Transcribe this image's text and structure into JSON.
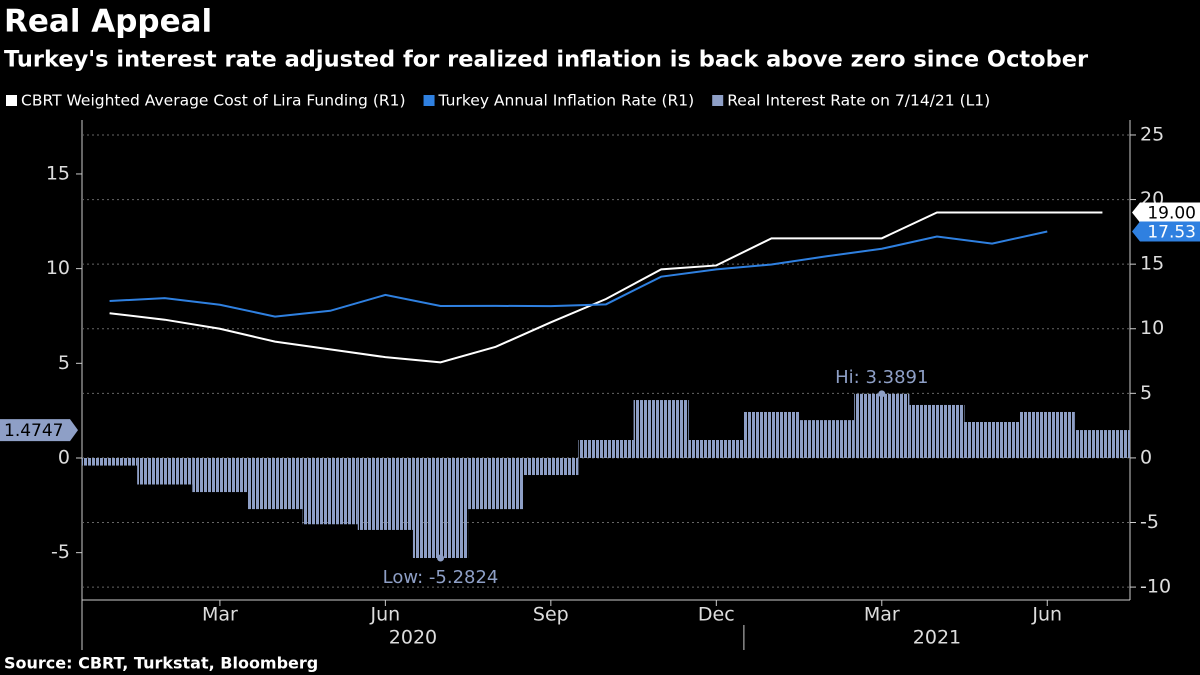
{
  "chart_data": {
    "type": "combo",
    "title": "Real Appeal",
    "subtitle": "Turkey's interest rate adjusted for realized inflation is back above zero since October",
    "source": "Source: CBRT, Turkstat, Bloomberg",
    "x": [
      "2020-01",
      "2020-02",
      "2020-03",
      "2020-04",
      "2020-05",
      "2020-06",
      "2020-07",
      "2020-08",
      "2020-09",
      "2020-10",
      "2020-11",
      "2020-12",
      "2021-01",
      "2021-02",
      "2021-03",
      "2021-04",
      "2021-05",
      "2021-06",
      "2021-07"
    ],
    "xlim": [
      "2020-01",
      "2021-07"
    ],
    "xticks": [
      {
        "value": "2020-03",
        "label": "Mar"
      },
      {
        "value": "2020-06",
        "label": "Jun"
      },
      {
        "value": "2020-09",
        "label": "Sep"
      },
      {
        "value": "2020-12",
        "label": "Dec"
      },
      {
        "value": "2021-03",
        "label": "Mar"
      },
      {
        "value": "2021-06",
        "label": "Jun"
      }
    ],
    "years": [
      "2020",
      "2021"
    ],
    "ylim": [
      -7.5,
      17.85
    ],
    "yticks": [
      -5,
      0,
      5,
      10,
      15
    ],
    "y2lim": [
      -11,
      26.16
    ],
    "y2ticks": [
      -10,
      -5,
      0,
      5,
      10,
      15,
      20,
      25
    ],
    "grid": true,
    "series": [
      {
        "name": "CBRT Weighted Average Cost of Lira Funding (R1)",
        "type": "line",
        "axis": "y2",
        "color": "#ffffff",
        "end_label": "19.00",
        "values": [
          11.2,
          10.7,
          10.0,
          9.0,
          8.4,
          7.8,
          7.4,
          8.6,
          10.5,
          12.3,
          14.6,
          14.9,
          17.0,
          17.0,
          17.0,
          19.0,
          19.0,
          19.0,
          19.0
        ]
      },
      {
        "name": "Turkey Annual Inflation Rate (R1)",
        "type": "line",
        "axis": "y2",
        "color": "#2f80e0",
        "end_label": "17.53",
        "values": [
          12.15,
          12.37,
          11.86,
          10.94,
          11.39,
          12.62,
          11.76,
          11.77,
          11.75,
          11.89,
          14.03,
          14.6,
          14.97,
          15.61,
          16.19,
          17.14,
          16.59,
          17.53,
          null
        ]
      },
      {
        "name": "Real Interest Rate on 7/14/21 (L1)",
        "type": "bar",
        "axis": "y",
        "color": "#8e9fc6",
        "end_label": "1.4747",
        "values": [
          -0.4,
          -1.4,
          -1.8,
          -2.7,
          -3.5,
          -3.8,
          -5.2824,
          -2.7,
          -0.9,
          0.95,
          3.06,
          0.95,
          2.43,
          2.0,
          3.3891,
          2.8,
          1.9,
          2.43,
          1.4747
        ]
      }
    ],
    "annotations": [
      {
        "text": "Hi: 3.3891",
        "x": "2021-03",
        "series": 2
      },
      {
        "text": "Low: -5.2824",
        "x": "2020-07",
        "series": 2
      }
    ]
  }
}
